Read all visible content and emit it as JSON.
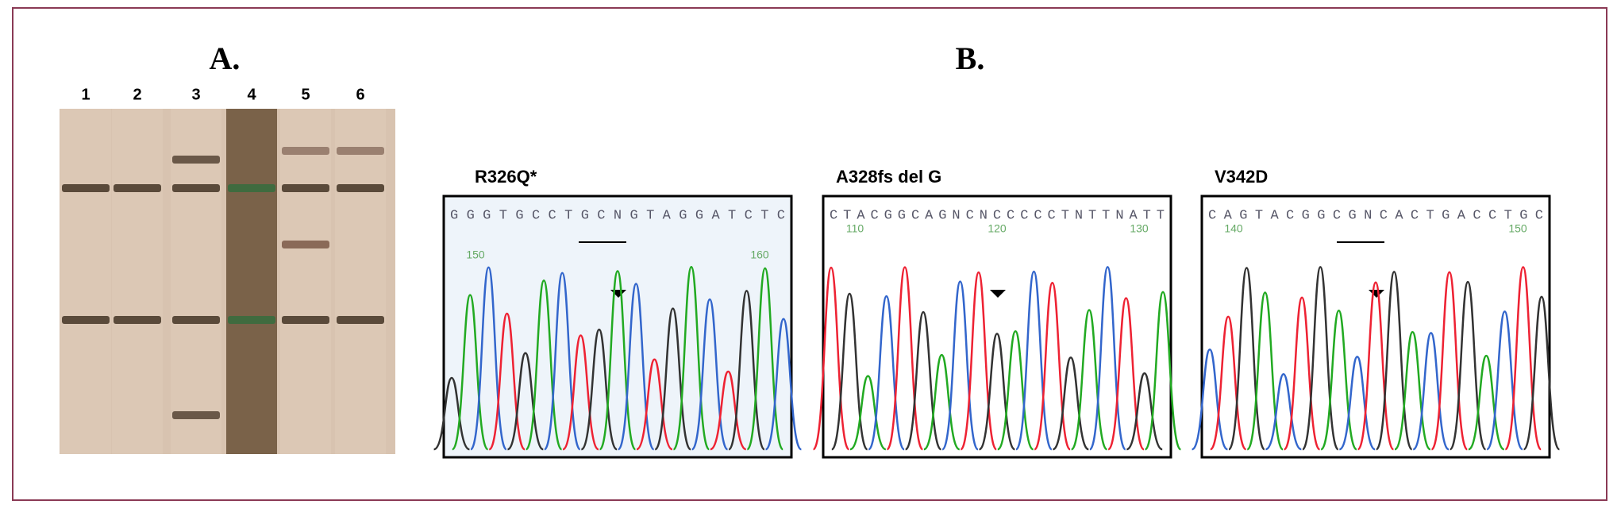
{
  "panel_a": {
    "label": "A.",
    "lanes": [
      "1",
      "2",
      "3",
      "4",
      "5",
      "6"
    ]
  },
  "panel_b": {
    "label": "B.",
    "chromatograms": [
      {
        "title": "R326Q*",
        "sequence": "GGGTGCCTGCNGTAGGATCTC",
        "positions": [
          150,
          160
        ]
      },
      {
        "title": "A328fs del G",
        "sequence": "CTACGGCAGNCNCCCCCTNTTNATT",
        "positions": [
          110,
          120,
          130
        ]
      },
      {
        "title": "V342D",
        "sequence": "CAGTACGGCGNCACTGACCTGC",
        "positions": [
          140,
          150
        ]
      }
    ]
  }
}
